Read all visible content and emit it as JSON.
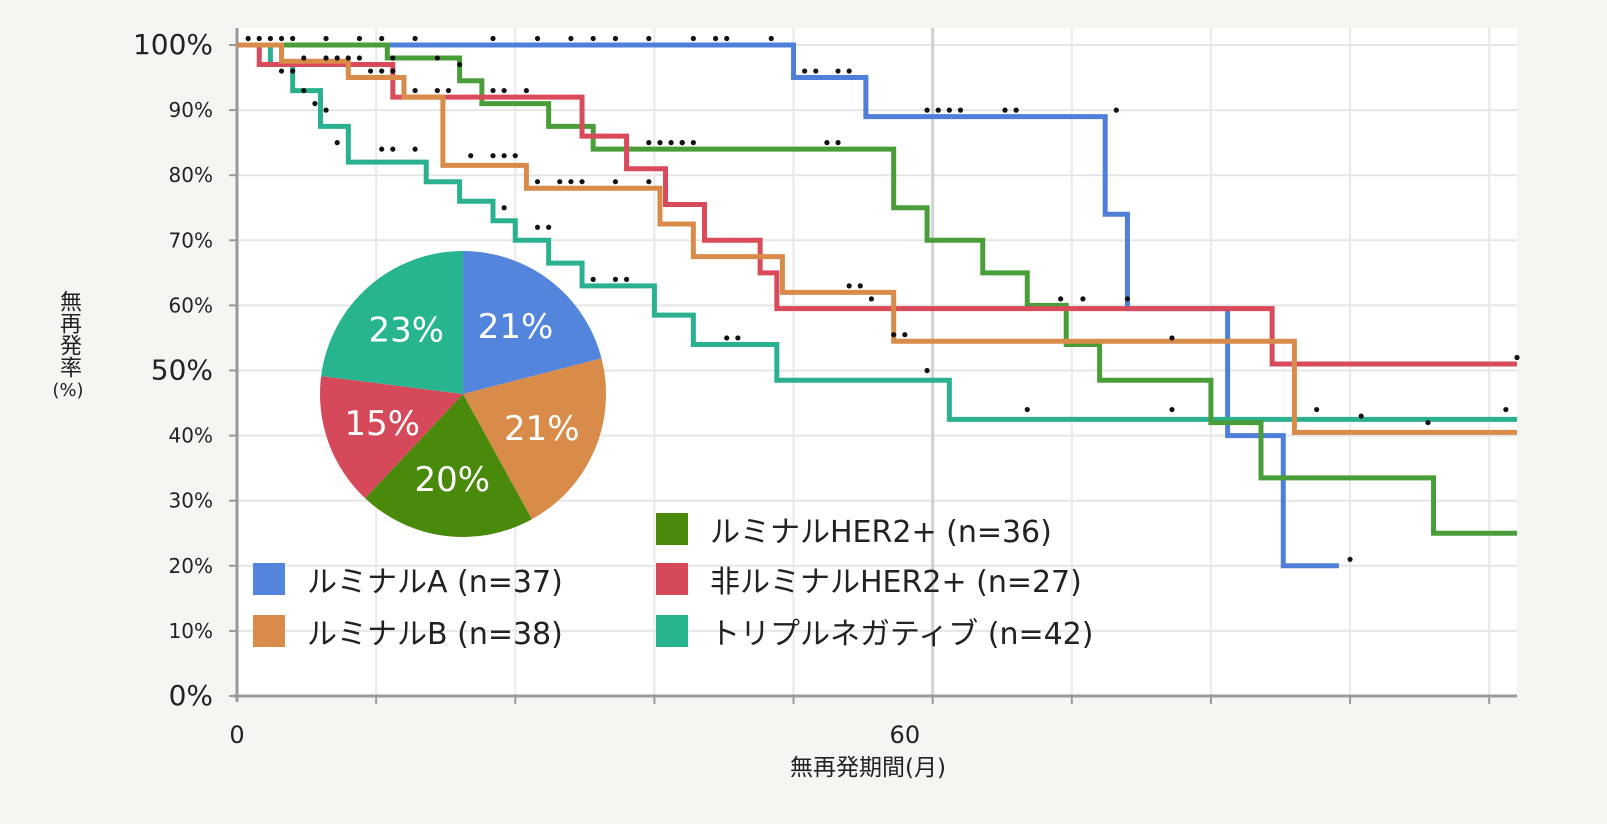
{
  "chart_data": {
    "type": "line",
    "subtype": "kaplan-meier-step",
    "xlabel": "無再発期間(月)",
    "ylabel": {
      "text": "無再発率",
      "unit": "(%)"
    },
    "xlim": [
      0,
      115
    ],
    "ylim": [
      0,
      100
    ],
    "x_ticks": [
      {
        "value": 0,
        "label": "0"
      },
      {
        "value": 60,
        "label": "60"
      }
    ],
    "y_ticks": [
      {
        "value": 0,
        "label": "0%",
        "large": true
      },
      {
        "value": 10,
        "label": "10%",
        "large": false
      },
      {
        "value": 20,
        "label": "20%",
        "large": false
      },
      {
        "value": 30,
        "label": "30%",
        "large": false
      },
      {
        "value": 40,
        "label": "40%",
        "large": false
      },
      {
        "value": 50,
        "label": "50%",
        "large": true
      },
      {
        "value": 60,
        "label": "60%",
        "large": false
      },
      {
        "value": 70,
        "label": "70%",
        "large": false
      },
      {
        "value": 80,
        "label": "80%",
        "large": false
      },
      {
        "value": 90,
        "label": "90%",
        "large": false
      },
      {
        "value": 100,
        "label": "100%",
        "large": true
      }
    ],
    "series": [
      {
        "name": "luminal-a",
        "color": "#4f7fd9",
        "steps": [
          [
            0,
            100
          ],
          [
            50,
            95
          ],
          [
            56.5,
            89
          ],
          [
            78,
            74
          ],
          [
            80,
            59.5
          ],
          [
            89,
            40
          ],
          [
            94,
            20
          ],
          [
            99,
            20
          ]
        ],
        "censor": [
          [
            1,
            101
          ],
          [
            2,
            101
          ],
          [
            3,
            101
          ],
          [
            4,
            101
          ],
          [
            5,
            101
          ],
          [
            8,
            101
          ],
          [
            11,
            101
          ],
          [
            13,
            101
          ],
          [
            16,
            101
          ],
          [
            23,
            101
          ],
          [
            27,
            101
          ],
          [
            30,
            101
          ],
          [
            32,
            101
          ],
          [
            34,
            101
          ],
          [
            37,
            101
          ],
          [
            41,
            101
          ],
          [
            43,
            101
          ],
          [
            44,
            101
          ],
          [
            48,
            101
          ],
          [
            51,
            96
          ],
          [
            52,
            96
          ],
          [
            54,
            96
          ],
          [
            55,
            96
          ],
          [
            62,
            90
          ],
          [
            63,
            90
          ],
          [
            64,
            90
          ],
          [
            65,
            90
          ],
          [
            69,
            90
          ],
          [
            70,
            90
          ],
          [
            79,
            90
          ],
          [
            100,
            21
          ]
        ]
      },
      {
        "name": "luminal-b",
        "color": "#d98b4a",
        "steps": [
          [
            0,
            100
          ],
          [
            4,
            97.5
          ],
          [
            10,
            95
          ],
          [
            15,
            92
          ],
          [
            18.5,
            81.5
          ],
          [
            26,
            78
          ],
          [
            38,
            72.5
          ],
          [
            41,
            67.5
          ],
          [
            49,
            62
          ],
          [
            59,
            54.5
          ],
          [
            95,
            40.5
          ],
          [
            115,
            40.5
          ]
        ],
        "censor": [
          [
            5,
            96
          ],
          [
            12,
            96
          ],
          [
            13,
            96
          ],
          [
            14,
            96
          ],
          [
            16,
            93
          ],
          [
            18,
            93
          ],
          [
            19,
            93
          ],
          [
            21,
            83
          ],
          [
            23,
            83
          ],
          [
            24,
            83
          ],
          [
            25,
            83
          ],
          [
            27,
            79
          ],
          [
            29,
            79
          ],
          [
            30,
            79
          ],
          [
            31,
            79
          ],
          [
            34,
            79
          ],
          [
            37,
            79
          ],
          [
            55,
            63
          ],
          [
            56,
            63
          ],
          [
            57,
            61
          ],
          [
            59,
            55.5
          ],
          [
            60,
            55.5
          ],
          [
            62,
            50
          ],
          [
            71,
            44
          ],
          [
            84,
            44
          ],
          [
            97,
            44
          ],
          [
            101,
            43
          ],
          [
            107,
            42
          ],
          [
            114,
            44
          ]
        ]
      },
      {
        "name": "luminal-her2",
        "color": "#4a9e3a",
        "steps": [
          [
            0,
            100
          ],
          [
            13.5,
            98
          ],
          [
            20,
            94.5
          ],
          [
            22,
            91
          ],
          [
            28,
            87.5
          ],
          [
            32,
            84
          ],
          [
            59,
            75
          ],
          [
            62,
            70
          ],
          [
            67,
            65
          ],
          [
            71,
            60
          ],
          [
            74.5,
            54
          ],
          [
            77.5,
            48.5
          ],
          [
            87.5,
            42
          ],
          [
            92,
            33.5
          ],
          [
            107.5,
            25
          ],
          [
            115,
            25
          ]
        ],
        "censor": [
          [
            14,
            98
          ],
          [
            18,
            98
          ],
          [
            20,
            97
          ],
          [
            38,
            85
          ],
          [
            40,
            85
          ],
          [
            53,
            85
          ],
          [
            54,
            85
          ]
        ]
      },
      {
        "name": "non-luminal-her2",
        "color": "#d94a5a",
        "steps": [
          [
            0,
            100
          ],
          [
            2,
            97
          ],
          [
            14,
            92
          ],
          [
            31,
            86
          ],
          [
            35,
            81
          ],
          [
            38.5,
            75.5
          ],
          [
            42,
            70
          ],
          [
            47,
            65
          ],
          [
            48.5,
            59.5
          ],
          [
            93,
            51
          ],
          [
            115,
            51
          ]
        ],
        "censor": [
          [
            6,
            98
          ],
          [
            8,
            98
          ],
          [
            9,
            98
          ],
          [
            10,
            98
          ],
          [
            11,
            98
          ],
          [
            23,
            93
          ],
          [
            24,
            93
          ],
          [
            26,
            93
          ],
          [
            37,
            85
          ],
          [
            39,
            85
          ],
          [
            40,
            85
          ],
          [
            41,
            85
          ],
          [
            74,
            61
          ],
          [
            76,
            61
          ],
          [
            80,
            61
          ],
          [
            84,
            55
          ],
          [
            115,
            52
          ]
        ]
      },
      {
        "name": "triple-negative",
        "color": "#2bb090",
        "steps": [
          [
            0,
            100
          ],
          [
            3,
            97
          ],
          [
            5,
            93
          ],
          [
            7.5,
            87.5
          ],
          [
            10,
            82
          ],
          [
            17,
            79
          ],
          [
            20,
            76
          ],
          [
            23,
            73
          ],
          [
            25,
            70
          ],
          [
            28,
            66.5
          ],
          [
            31,
            63
          ],
          [
            37.5,
            58.5
          ],
          [
            41,
            54
          ],
          [
            48.5,
            48.5
          ],
          [
            64,
            42.5
          ],
          [
            115,
            42.5
          ]
        ],
        "censor": [
          [
            4,
            96
          ],
          [
            6,
            93
          ],
          [
            7,
            91
          ],
          [
            8,
            90
          ],
          [
            9,
            85
          ],
          [
            13,
            84
          ],
          [
            14,
            84
          ],
          [
            16,
            84
          ],
          [
            24,
            75
          ],
          [
            27,
            72
          ],
          [
            28,
            72
          ],
          [
            32,
            64
          ],
          [
            34,
            64
          ],
          [
            35,
            64
          ],
          [
            44,
            55
          ],
          [
            45,
            55
          ]
        ]
      }
    ],
    "legend": [
      {
        "series": "luminal-a",
        "label": "ルミナルA (n=37)",
        "color": "#5385dc"
      },
      {
        "series": "luminal-b",
        "label": "ルミナルB (n=38)",
        "color": "#d98b4a"
      },
      {
        "series": "luminal-her2",
        "label": "ルミナルHER2+ (n=36)",
        "color": "#4a8a0a"
      },
      {
        "series": "non-luminal-her2",
        "label": "非ルミナルHER2+ (n=27)",
        "color": "#d6495b"
      },
      {
        "series": "triple-negative",
        "label": "トリプルネガティブ (n=42)",
        "color": "#27b590"
      }
    ],
    "pie": {
      "type": "pie",
      "slices": [
        {
          "name": "luminal-a",
          "label": "21%",
          "value": 21,
          "color": "#5385dc"
        },
        {
          "name": "luminal-b",
          "label": "21%",
          "value": 21,
          "color": "#d98b4a"
        },
        {
          "name": "luminal-her2",
          "label": "20%",
          "value": 20,
          "color": "#4a8a0a"
        },
        {
          "name": "non-luminal-her2",
          "label": "15%",
          "value": 15,
          "color": "#d6495b"
        },
        {
          "name": "triple-negative",
          "label": "23%",
          "value": 23,
          "color": "#27b590"
        }
      ]
    }
  }
}
